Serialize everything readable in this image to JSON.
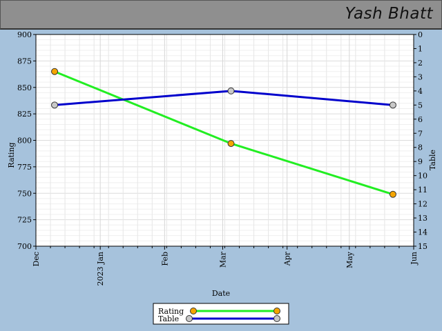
{
  "header": {
    "title": "Yash Bhatt"
  },
  "chart_data": {
    "type": "line",
    "xlabel": "Date",
    "ylabel": "Rating",
    "y2label": "Table",
    "x_range": [
      "2022-12-01",
      "2023-06-01"
    ],
    "x_ticks": [
      {
        "date": "2022-12-01",
        "label": "Dec"
      },
      {
        "date": "2023-01-01",
        "label": "2023 Jan"
      },
      {
        "date": "2023-02-01",
        "label": "Feb"
      },
      {
        "date": "2023-03-01",
        "label": "Mar"
      },
      {
        "date": "2023-04-01",
        "label": "Apr"
      },
      {
        "date": "2023-05-01",
        "label": "May"
      },
      {
        "date": "2023-06-01",
        "label": "Jun"
      }
    ],
    "ylim": [
      700,
      900
    ],
    "y_ticks": [
      700,
      725,
      750,
      775,
      800,
      825,
      850,
      875,
      900
    ],
    "y2lim": [
      15,
      0
    ],
    "y2_ticks": [
      0,
      1,
      2,
      3,
      4,
      5,
      6,
      7,
      8,
      9,
      10,
      11,
      12,
      13,
      14,
      15
    ],
    "grid": true,
    "legend_position": "bottom-center",
    "series": [
      {
        "name": "Rating",
        "axis": "left",
        "color": "#22ee22",
        "marker_color": "#f5a500",
        "points": [
          {
            "x": "2022-12-10",
            "y": 865
          },
          {
            "x": "2023-03-05",
            "y": 797
          },
          {
            "x": "2023-05-22",
            "y": 749
          }
        ]
      },
      {
        "name": "Table",
        "axis": "right",
        "color": "#0000cc",
        "marker_color": "#c8c8c8",
        "points": [
          {
            "x": "2022-12-10",
            "y": 5
          },
          {
            "x": "2023-03-05",
            "y": 4
          },
          {
            "x": "2023-05-22",
            "y": 5
          }
        ]
      }
    ]
  }
}
